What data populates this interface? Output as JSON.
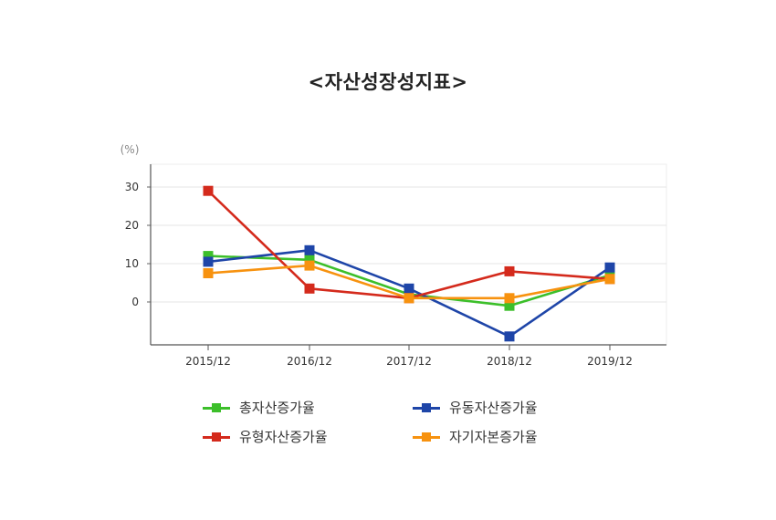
{
  "chart_data": {
    "type": "line",
    "title": "<자산성장성지표>",
    "yunit": "(%)",
    "categories": [
      "2015/12",
      "2016/12",
      "2017/12",
      "2018/12",
      "2019/12"
    ],
    "yticks": [
      0,
      10,
      20,
      30
    ],
    "ylim": [
      -10,
      35
    ],
    "grid": true,
    "legend_position": "bottom",
    "series": [
      {
        "name": "총자산증가율",
        "color": "#3cbf2a",
        "values": [
          12,
          11,
          2,
          -1,
          7
        ]
      },
      {
        "name": "유동자산증가율",
        "color": "#1e45a8",
        "values": [
          10.5,
          13.5,
          3.5,
          -9,
          9
        ]
      },
      {
        "name": "유형자산증가율",
        "color": "#d42a1c",
        "values": [
          29,
          3.5,
          1,
          8,
          6
        ]
      },
      {
        "name": "자기자본증가율",
        "color": "#f7920f",
        "values": [
          7.5,
          9.5,
          1,
          1,
          6
        ]
      }
    ]
  }
}
